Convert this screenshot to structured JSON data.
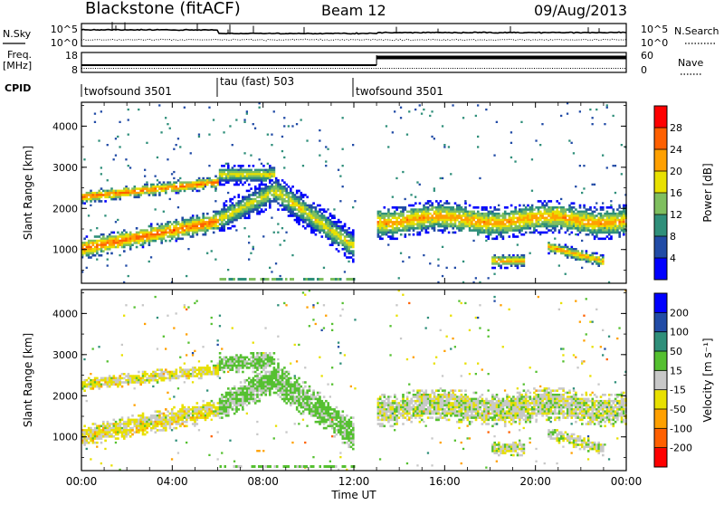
{
  "header": {
    "station": "Blackstone (fitACF)",
    "beam": "Beam 12",
    "date": "09/Aug/2013"
  },
  "top_panels": {
    "noise": {
      "left_label": "N.Sky",
      "right_label": "N.Search",
      "left_ticks": [
        "10^5",
        "10^0"
      ],
      "right_ticks": [
        "10^5",
        "10^0"
      ]
    },
    "freq_nave": {
      "left_label_1": "Freq.",
      "left_label_2": "[MHz]",
      "right_label": "Nave",
      "left_ticks": [
        "18",
        "8"
      ],
      "right_ticks": [
        "60",
        "0"
      ]
    },
    "cpid": {
      "label": "CPID",
      "segments": [
        {
          "name": "twofsound 3501",
          "start_hour": 0,
          "end_hour": 6
        },
        {
          "name": "tau (fast) 503",
          "start_hour": 6,
          "end_hour": 12
        },
        {
          "name": "twofsound 3501",
          "start_hour": 12,
          "end_hour": 24
        }
      ]
    }
  },
  "chart_data": [
    {
      "type": "heatmap",
      "title": "Power",
      "ylabel": "Slant Range [km]",
      "xlim": [
        0,
        24
      ],
      "ylim": [
        180,
        4580
      ],
      "yticks": [
        "1000",
        "2000",
        "3000",
        "4000"
      ],
      "colorbar": {
        "label": "Power [dB]",
        "ticks": [
          "28",
          "24",
          "20",
          "16",
          "12",
          "8",
          "4"
        ],
        "colors": [
          "#0000ff",
          "#214ba6",
          "#2f8f7a",
          "#7fbf5f",
          "#e8e000",
          "#ffa000",
          "#ff6000",
          "#ff0000"
        ]
      },
      "echo_bands": [
        {
          "hours": [
            0,
            6
          ],
          "range_km": [
            1000,
            1900
          ],
          "power_db": 24
        },
        {
          "hours": [
            6,
            12
          ],
          "range_km": [
            1500,
            3000
          ],
          "power_db": 16
        },
        {
          "hours": [
            13,
            24
          ],
          "range_km": [
            1200,
            2200
          ],
          "power_db": 20
        },
        {
          "hours": [
            18,
            19.5
          ],
          "range_km": [
            600,
            900
          ],
          "power_db": 22
        }
      ]
    },
    {
      "type": "heatmap",
      "title": "Velocity",
      "ylabel": "Slant Range [km]",
      "xlabel": "Time UT",
      "xlim": [
        0,
        24
      ],
      "ylim": [
        180,
        4580
      ],
      "xticks": [
        "00:00",
        "04:00",
        "08:00",
        "12:00",
        "16:00",
        "20:00",
        "00:00"
      ],
      "yticks": [
        "1000",
        "2000",
        "3000",
        "4000"
      ],
      "colorbar": {
        "label": "Velocity [m s⁻¹]",
        "ticks": [
          "200",
          "100",
          "50",
          "15",
          "-15",
          "-50",
          "-100",
          "-200"
        ],
        "colors": [
          "#ff0000",
          "#ff6000",
          "#ffa000",
          "#e8e000",
          "#c8c8c8",
          "#55c030",
          "#2f8f7a",
          "#214ba6",
          "#0000ff"
        ]
      },
      "echo_bands": [
        {
          "hours": [
            0,
            6
          ],
          "range_km": [
            800,
            1900
          ],
          "velocity": -15
        },
        {
          "hours": [
            6,
            12
          ],
          "range_km": [
            1500,
            3000
          ],
          "velocity": 15
        },
        {
          "hours": [
            13,
            24
          ],
          "range_km": [
            1200,
            2200
          ],
          "velocity": 0
        },
        {
          "hours": [
            18,
            19.5
          ],
          "range_km": [
            600,
            900
          ],
          "velocity": 0
        }
      ]
    }
  ],
  "colors": {
    "axis": "#000000",
    "cpid_line": "#000000"
  }
}
